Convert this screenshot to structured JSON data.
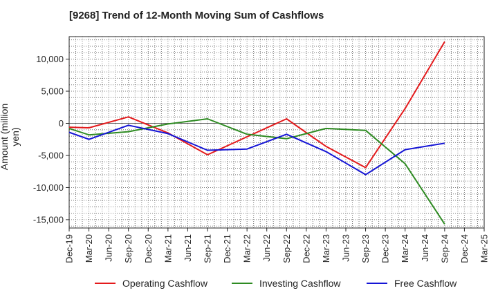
{
  "chart_data": {
    "type": "line",
    "title": "[9268]  Trend of 12-Month Moving Sum of Cashflows",
    "xlabel": "",
    "ylabel": "Amount (million yen)",
    "ylim": [
      -16300,
      13500
    ],
    "grid": true,
    "legend_position": "bottom",
    "categories": [
      "Dec-19",
      "Mar-20",
      "Jun-20",
      "Sep-20",
      "Dec-20",
      "Mar-21",
      "Jun-21",
      "Sep-21",
      "Dec-21",
      "Mar-22",
      "Jun-22",
      "Sep-22",
      "Dec-22",
      "Mar-23",
      "Jun-23",
      "Sep-23",
      "Dec-23",
      "Mar-24",
      "Jun-24",
      "Sep-24",
      "Dec-24",
      "Mar-25"
    ],
    "y_ticks": [
      10000,
      5000,
      0,
      -5000,
      -10000,
      -15000
    ],
    "y_tick_labels": [
      "10,000",
      "5,000",
      "0",
      "-5,000",
      "-10,000",
      "-15,000"
    ],
    "series": [
      {
        "name": "Operating Cashflow",
        "color": "#e41a1c",
        "values": [
          -600,
          -700,
          null,
          1000,
          null,
          -1500,
          null,
          -4900,
          null,
          -2100,
          null,
          700,
          null,
          -3600,
          null,
          -6900,
          null,
          2300,
          null,
          12700,
          null,
          null
        ]
      },
      {
        "name": "Investing Cashflow",
        "color": "#2e8b22",
        "values": [
          -800,
          -1800,
          null,
          -1300,
          null,
          -100,
          null,
          700,
          null,
          -1700,
          null,
          -2400,
          null,
          -800,
          null,
          -1100,
          null,
          -6300,
          null,
          -15700,
          null,
          null
        ]
      },
      {
        "name": "Free Cashflow",
        "color": "#1515d6",
        "values": [
          -1400,
          -2500,
          null,
          -300,
          null,
          -1600,
          null,
          -4200,
          null,
          -4000,
          null,
          -1700,
          null,
          -4400,
          null,
          -8000,
          null,
          -4100,
          null,
          -3100,
          null,
          null
        ]
      }
    ]
  }
}
